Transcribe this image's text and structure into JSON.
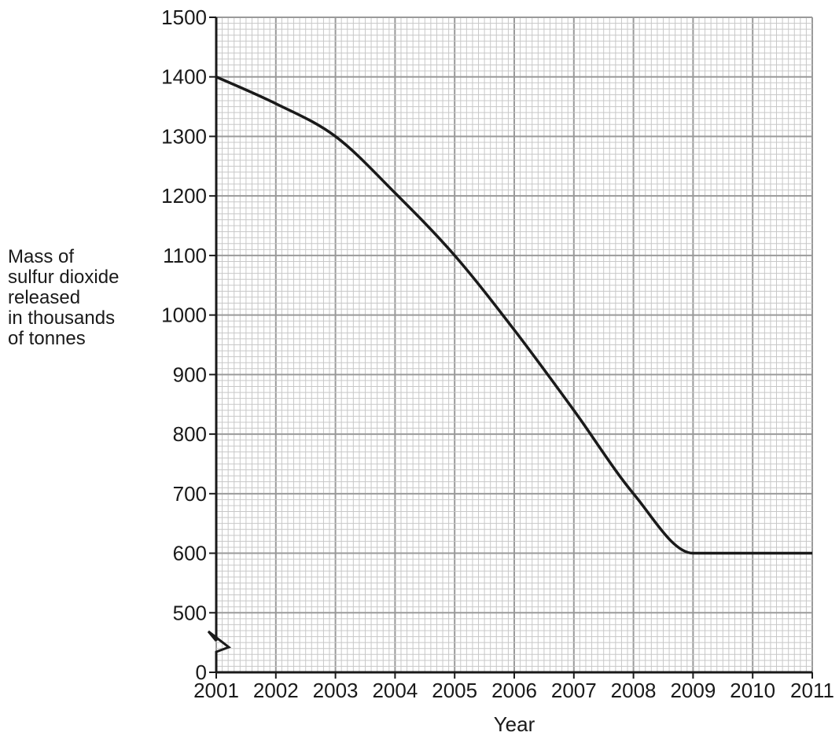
{
  "chart_data": {
    "type": "line",
    "xlabel": "Year",
    "ylabel_lines": [
      "Mass of",
      "sulfur dioxide",
      "released",
      "in thousands",
      "of tonnes"
    ],
    "x_ticks": [
      "2001",
      "2002",
      "2003",
      "2004",
      "2005",
      "2006",
      "2007",
      "2008",
      "2009",
      "2010",
      "2011"
    ],
    "y_ticks": [
      0,
      500,
      600,
      700,
      800,
      900,
      1000,
      1100,
      1200,
      1300,
      1400,
      1500
    ],
    "xlim": [
      2001,
      2011
    ],
    "ylim": [
      400,
      1500
    ],
    "axis_break": true,
    "grid": "major and minor",
    "colors": {
      "major_grid": "#9a9a9a",
      "minor_grid": "#c8c8c8",
      "line": "#1a1a1a"
    },
    "series": [
      {
        "x": [
          2001,
          2002,
          2003,
          2004,
          2005,
          2006,
          2007,
          2008,
          2009,
          2010,
          2011
        ],
        "y": [
          1400,
          1355,
          1300,
          1205,
          1100,
          975,
          840,
          700,
          600,
          600,
          600
        ]
      }
    ]
  }
}
